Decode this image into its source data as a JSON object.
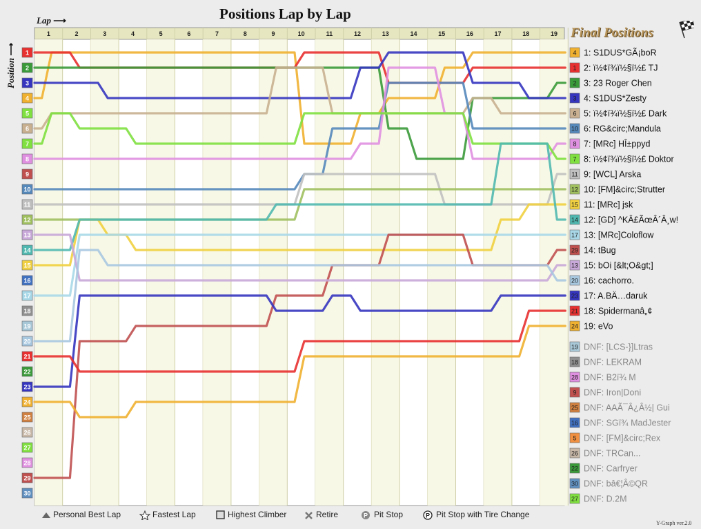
{
  "title": "Positions Lap by Lap",
  "lap_label": "Lap",
  "position_label": "Position",
  "final_positions_title": "Final Positions",
  "version": "Y-Graph ver.2.0",
  "legend": {
    "best_lap": "Personal Best Lap",
    "fastest_lap": "Fastest Lap",
    "climber": "Highest Climber",
    "retire": "Retire",
    "pit": "Pit Stop",
    "pit_tire": "Pit Stop with Tire Change"
  },
  "chart_data": {
    "type": "line",
    "x_label": "Lap",
    "y_label": "Position",
    "laps": [
      1,
      2,
      3,
      4,
      5,
      6,
      7,
      8,
      9,
      10,
      11,
      12,
      13,
      14,
      15,
      16,
      17,
      18,
      19
    ],
    "positions_axis": [
      1,
      2,
      3,
      4,
      5,
      6,
      7,
      8,
      9,
      10,
      11,
      12,
      13,
      14,
      15,
      16,
      17,
      18,
      19,
      20,
      21,
      22,
      23,
      24,
      25,
      26,
      27,
      28,
      29,
      30
    ],
    "y_inverted": true,
    "series": [
      {
        "name": "1: S1DUS*GÃ¡boR",
        "start": 4,
        "color": "#f0b030",
        "positions": [
          1,
          1,
          1,
          1,
          1,
          1,
          1,
          1,
          1,
          7,
          7,
          5,
          4,
          4,
          2,
          1,
          1,
          1,
          1
        ]
      },
      {
        "name": "2: ï½¢ï¾ï½§ï½£ TJ",
        "start": 1,
        "color": "#e83030",
        "positions": [
          1,
          2,
          2,
          2,
          2,
          2,
          2,
          2,
          2,
          1,
          1,
          1,
          3,
          3,
          3,
          2,
          2,
          2,
          2
        ]
      },
      {
        "name": "3: 23 Roger Chen",
        "start": 2,
        "color": "#3a9a3a",
        "positions": [
          2,
          2,
          2,
          2,
          2,
          2,
          2,
          2,
          2,
          2,
          2,
          2,
          6,
          8,
          8,
          4,
          4,
          4,
          3
        ]
      },
      {
        "name": "4: S1DUS*Zesty",
        "start": 3,
        "color": "#3535c0",
        "positions": [
          3,
          3,
          4,
          4,
          4,
          4,
          4,
          4,
          4,
          4,
          4,
          2,
          1,
          1,
          1,
          3,
          3,
          4,
          4
        ]
      },
      {
        "name": "5: ï½¢ï¾ï½§ï½£ Dark",
        "start": 6,
        "color": "#c8b090",
        "positions": [
          5,
          5,
          5,
          5,
          5,
          5,
          5,
          5,
          2,
          2,
          5,
          5,
          5,
          5,
          5,
          4,
          5,
          5,
          5
        ]
      },
      {
        "name": "6: RG&circ;Mandula",
        "start": 10,
        "color": "#5588bb",
        "positions": [
          10,
          10,
          10,
          10,
          10,
          10,
          10,
          10,
          10,
          9,
          6,
          6,
          3,
          3,
          3,
          6,
          6,
          6,
          6
        ]
      },
      {
        "name": "7: [MRc] HÎ±ppyd",
        "start": 8,
        "color": "#e090e0",
        "positions": [
          8,
          8,
          8,
          8,
          8,
          8,
          8,
          8,
          8,
          8,
          8,
          7,
          2,
          2,
          5,
          8,
          8,
          8,
          7
        ]
      },
      {
        "name": "8: ï½¢ï¾ï½§ï½£ Doktor",
        "start": 7,
        "color": "#80e040",
        "positions": [
          5,
          6,
          6,
          7,
          7,
          7,
          7,
          7,
          7,
          5,
          5,
          5,
          5,
          5,
          5,
          7,
          7,
          7,
          8
        ]
      },
      {
        "name": "9: [WCL] Arska",
        "start": 11,
        "color": "#c0c0c0",
        "positions": [
          11,
          11,
          11,
          11,
          11,
          11,
          11,
          11,
          11,
          9,
          9,
          9,
          9,
          9,
          11,
          11,
          11,
          11,
          9
        ]
      },
      {
        "name": "10: [FM]&circ;Strutter",
        "start": 12,
        "color": "#a0c060",
        "positions": [
          12,
          12,
          12,
          12,
          12,
          12,
          12,
          12,
          12,
          10,
          10,
          10,
          10,
          10,
          10,
          10,
          10,
          10,
          10
        ]
      },
      {
        "name": "11: [MRc] jsk",
        "start": 15,
        "color": "#f0d040",
        "positions": [
          15,
          12,
          13,
          14,
          14,
          14,
          14,
          14,
          14,
          14,
          14,
          14,
          14,
          14,
          14,
          14,
          12,
          11,
          11
        ]
      },
      {
        "name": "12: [GD] ^KÂ£ÃœÂ´Â¸w!",
        "start": 14,
        "color": "#50b8b0",
        "positions": [
          14,
          12,
          12,
          12,
          12,
          12,
          12,
          12,
          11,
          11,
          11,
          11,
          11,
          11,
          11,
          11,
          7,
          7,
          12
        ]
      },
      {
        "name": "13: [MRc]Coloflow",
        "start": 17,
        "color": "#a8d8e8",
        "positions": [
          17,
          13,
          13,
          13,
          13,
          13,
          13,
          13,
          13,
          13,
          13,
          13,
          13,
          13,
          13,
          13,
          13,
          13,
          13
        ]
      },
      {
        "name": "14: tBug",
        "start": 29,
        "color": "#c05050",
        "positions": [
          29,
          20,
          20,
          19,
          19,
          19,
          19,
          19,
          17,
          17,
          15,
          15,
          13,
          13,
          13,
          15,
          15,
          15,
          14
        ]
      },
      {
        "name": "15: bOi [&lt;O&gt;]",
        "start": 13,
        "color": "#c8a8d8",
        "positions": [
          13,
          16,
          16,
          16,
          16,
          16,
          16,
          16,
          16,
          16,
          16,
          16,
          16,
          16,
          16,
          16,
          16,
          16,
          15
        ]
      },
      {
        "name": "16: cachorro.",
        "start": 20,
        "color": "#a8c8e0",
        "positions": [
          20,
          14,
          15,
          15,
          15,
          15,
          15,
          15,
          15,
          15,
          15,
          15,
          15,
          15,
          15,
          15,
          15,
          15,
          16
        ]
      },
      {
        "name": "17: A.BÄ…daruk",
        "start": 23,
        "color": "#3535c0",
        "positions": [
          23,
          17,
          17,
          17,
          17,
          17,
          17,
          17,
          18,
          18,
          17,
          18,
          18,
          18,
          18,
          18,
          17,
          17,
          17
        ]
      },
      {
        "name": "18: Spidermanâ„¢",
        "start": 21,
        "color": "#e83030",
        "positions": [
          21,
          22,
          22,
          22,
          22,
          22,
          22,
          22,
          22,
          20,
          20,
          20,
          20,
          20,
          20,
          20,
          20,
          18,
          18
        ]
      },
      {
        "name": "19: eVo",
        "start": 24,
        "color": "#f0b030",
        "positions": [
          24,
          25,
          25,
          24,
          24,
          24,
          24,
          24,
          24,
          21,
          21,
          21,
          21,
          21,
          21,
          21,
          21,
          19,
          19
        ]
      }
    ]
  },
  "final_positions": [
    {
      "start": "4",
      "label": "1: S1DUS*GÃ¡boR",
      "color": "#f0b030"
    },
    {
      "start": "1",
      "label": "2: ï½¢ï¾ï½§ï½£ TJ",
      "color": "#e83030"
    },
    {
      "start": "2",
      "label": "3: 23 Roger Chen",
      "color": "#3a9a3a"
    },
    {
      "start": "3",
      "label": "4: S1DUS*Zesty",
      "color": "#3535c0"
    },
    {
      "start": "6",
      "label": "5: ï½¢ï¾ï½§ï½£ Dark",
      "color": "#c8b090"
    },
    {
      "start": "10",
      "label": "6: RG&circ;Mandula",
      "color": "#5588bb"
    },
    {
      "start": "8",
      "label": "7: [MRc] HÎ±ppyd",
      "color": "#e090e0"
    },
    {
      "start": "7",
      "label": "8: ï½¢ï¾ï½§ï½£ Doktor",
      "color": "#80e040"
    },
    {
      "start": "11",
      "label": "9: [WCL] Arska",
      "color": "#c0c0c0"
    },
    {
      "start": "12",
      "label": "10: [FM]&circ;Strutter",
      "color": "#a0c060"
    },
    {
      "start": "15",
      "label": "11: [MRc] jsk",
      "color": "#f0d040"
    },
    {
      "start": "14",
      "label": "12: [GD] ^KÂ£ÃœÂ´Â¸w!",
      "color": "#50b8b0"
    },
    {
      "start": "17",
      "label": "13: [MRc]Coloflow",
      "color": "#a8d8e8"
    },
    {
      "start": "29",
      "label": "14: tBug",
      "color": "#c05050"
    },
    {
      "start": "13",
      "label": "15: bOi [&lt;O&gt;]",
      "color": "#c8a8d8"
    },
    {
      "start": "20",
      "label": "16: cachorro.",
      "color": "#a8c8e0"
    },
    {
      "start": "23",
      "label": "17: A.BÄ…daruk",
      "color": "#3535c0"
    },
    {
      "start": "21",
      "label": "18: Spidermanâ„¢",
      "color": "#e83030"
    },
    {
      "start": "24",
      "label": "19: eVo",
      "color": "#f0b030"
    },
    {
      "start": "19",
      "label": "DNF: [LCS-}]Ltras",
      "color": "#a8c8d8"
    },
    {
      "start": "18",
      "label": "DNF: LEKRAM",
      "color": "#909090"
    },
    {
      "start": "28",
      "label": "DNF: B2ï¾ M",
      "color": "#e090e0"
    },
    {
      "start": "9",
      "label": "DNF: Iron|Doni",
      "color": "#c05050"
    },
    {
      "start": "25",
      "label": "DNF: AAÃ¯Â¿Â½| Gui",
      "color": "#d08040"
    },
    {
      "start": "16",
      "label": "DNF: SGï¾ MadJester",
      "color": "#4070c0"
    },
    {
      "start": "5",
      "label": "DNF: [FM]&circ;Rex",
      "color": "#f09040"
    },
    {
      "start": "26",
      "label": "DNF: TRCan...",
      "color": "#c8b8a8"
    },
    {
      "start": "22",
      "label": "DNF: Carfryer",
      "color": "#3a9a3a"
    },
    {
      "start": "30",
      "label": "DNF: bâ€¦Â©QR",
      "color": "#6090c0"
    },
    {
      "start": "27",
      "label": "DNF: D.2M",
      "color": "#80e040"
    }
  ],
  "position_colors": [
    "#e83030",
    "#3a9a3a",
    "#3535c0",
    "#f0b030",
    "#80e040",
    "#c8b090",
    "#80e040",
    "#e090e0",
    "#c05050",
    "#5588bb",
    "#c0c0c0",
    "#a0c060",
    "#c8a8d8",
    "#50b8b0",
    "#f0d040",
    "#4070c0",
    "#a8d8e8",
    "#909090",
    "#a8c8d8",
    "#a8c8e0",
    "#e83030",
    "#3a9a3a",
    "#3535c0",
    "#f0b030",
    "#d08040",
    "#c8b8a8",
    "#80e040",
    "#e090e0",
    "#c05050",
    "#6090c0"
  ]
}
